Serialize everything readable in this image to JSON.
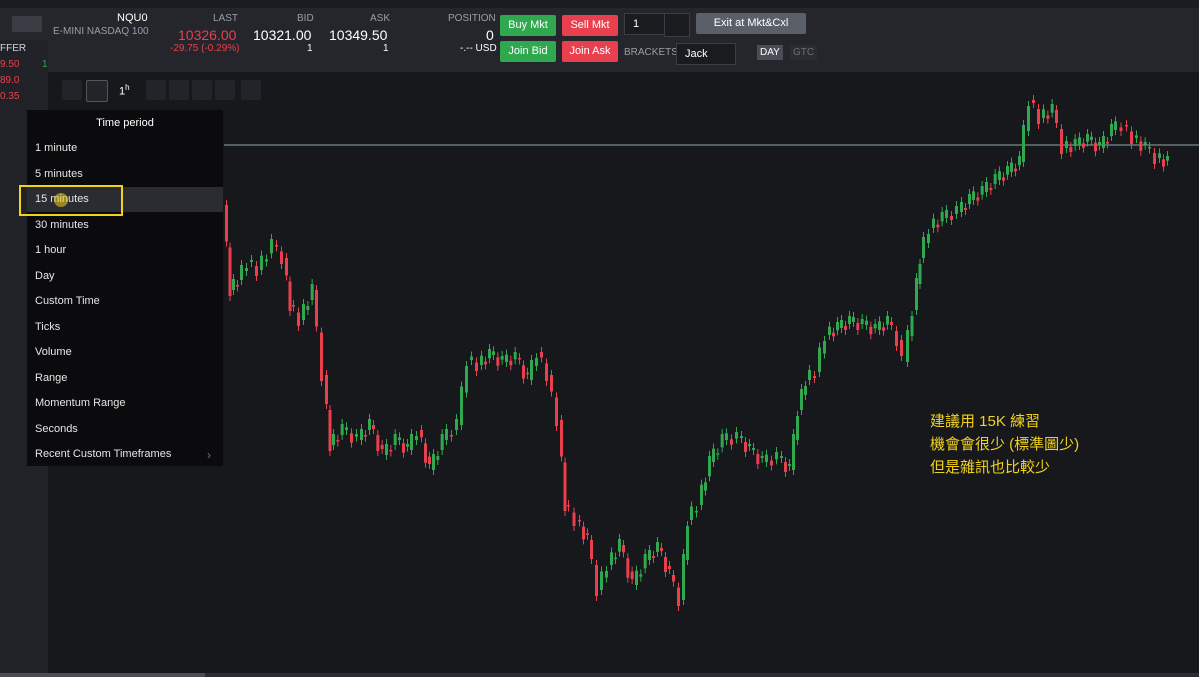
{
  "header": {
    "symbol": "NQU0",
    "description": "E-MINI NASDAQ 100",
    "last_label": "LAST",
    "last": "10326.00",
    "change": "-29.75 (-0.29%)",
    "bid_label": "BID",
    "bid": "10321.00",
    "bid_size": "1",
    "ask_label": "ASK",
    "ask": "10349.50",
    "ask_size": "1",
    "position_label": "POSITION",
    "position": "0",
    "pnl": "-.-- USD"
  },
  "order_bar": {
    "buy_market": "Buy Mkt",
    "sell_market": "Sell Mkt",
    "join_bid": "Join Bid",
    "join_ask": "Join Ask",
    "quantity": "1",
    "exit": "Exit at Mkt&Cxl",
    "brackets_label": "BRACKETS",
    "bracket": "Jack",
    "day": "DAY",
    "gtc": "GTC"
  },
  "left_panel": {
    "header": "FFER",
    "prices": [
      "9.50",
      "89.0",
      "0.35"
    ],
    "size": "1"
  },
  "toolbar": {
    "interval": "1",
    "interval_unit": "h"
  },
  "menu": {
    "title": "Time period",
    "items": [
      "1 minute",
      "5 minutes",
      "15 minutes",
      "30 minutes",
      "1 hour",
      "Day",
      "Custom Time",
      "Ticks",
      "Volume",
      "Range",
      "Momentum Range",
      "Seconds",
      "Recent Custom Timeframes"
    ]
  },
  "annotation": [
    "建議用 15K 練習",
    "機會會很少 (標準圖少)",
    "但是雜訊也比較少"
  ]
}
